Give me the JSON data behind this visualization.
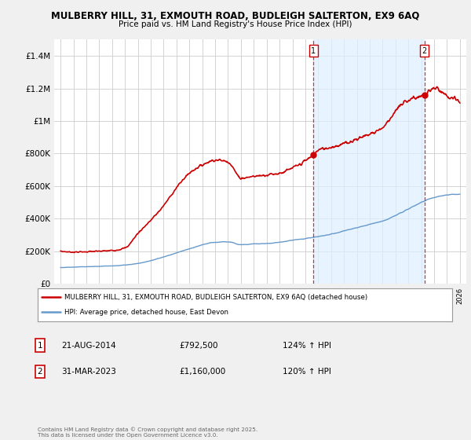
{
  "title1": "MULBERRY HILL, 31, EXMOUTH ROAD, BUDLEIGH SALTERTON, EX9 6AQ",
  "title2": "Price paid vs. HM Land Registry's House Price Index (HPI)",
  "legend_line1": "MULBERRY HILL, 31, EXMOUTH ROAD, BUDLEIGH SALTERTON, EX9 6AQ (detached house)",
  "legend_line2": "HPI: Average price, detached house, East Devon",
  "copyright": "Contains HM Land Registry data © Crown copyright and database right 2025.\nThis data is licensed under the Open Government Licence v3.0.",
  "annotation1": {
    "label": "1",
    "date": "21-AUG-2014",
    "price": "£792,500",
    "hpi": "124% ↑ HPI"
  },
  "annotation2": {
    "label": "2",
    "date": "31-MAR-2023",
    "price": "£1,160,000",
    "hpi": "120% ↑ HPI"
  },
  "vline1_x": 2014.64,
  "vline2_x": 2023.25,
  "sale1_y": 792500,
  "sale2_y": 1160000,
  "ylim": [
    0,
    1500000
  ],
  "xlim": [
    1994.5,
    2026.5
  ],
  "yticks": [
    0,
    200000,
    400000,
    600000,
    800000,
    1000000,
    1200000,
    1400000
  ],
  "ytick_labels": [
    "£0",
    "£200K",
    "£400K",
    "£600K",
    "£800K",
    "£1M",
    "£1.2M",
    "£1.4M"
  ],
  "bg_color": "#f0f0f0",
  "plot_bg": "#ffffff",
  "red_color": "#cc0000",
  "blue_color": "#6699cc",
  "shade_color": "#ddeeff",
  "grid_color": "#cccccc",
  "red_kx": [
    1995,
    1996,
    1997,
    1998,
    1999,
    2000,
    2001,
    2002,
    2003,
    2004,
    2005,
    2006,
    2007,
    2008,
    2009,
    2010,
    2011,
    2012,
    2013,
    2014.64,
    2015,
    2016,
    2017,
    2018,
    2019,
    2020,
    2021,
    2022,
    2023.25,
    2024,
    2025,
    2026
  ],
  "red_ky": [
    200000,
    195000,
    197000,
    200000,
    205000,
    220000,
    310000,
    390000,
    480000,
    590000,
    680000,
    730000,
    760000,
    750000,
    650000,
    660000,
    670000,
    680000,
    710000,
    792500,
    820000,
    840000,
    860000,
    890000,
    920000,
    960000,
    1060000,
    1130000,
    1160000,
    1200000,
    1150000,
    1120000
  ],
  "blue_kx": [
    1995,
    1997,
    1999,
    2001,
    2003,
    2005,
    2007,
    2008,
    2009,
    2010,
    2011,
    2012,
    2013,
    2014,
    2015,
    2016,
    2017,
    2018,
    2019,
    2020,
    2021,
    2022,
    2023,
    2024,
    2025,
    2026
  ],
  "blue_ky": [
    100000,
    105000,
    110000,
    125000,
    165000,
    215000,
    255000,
    258000,
    240000,
    245000,
    248000,
    255000,
    268000,
    278000,
    290000,
    305000,
    325000,
    345000,
    365000,
    385000,
    420000,
    460000,
    500000,
    530000,
    545000,
    550000
  ]
}
